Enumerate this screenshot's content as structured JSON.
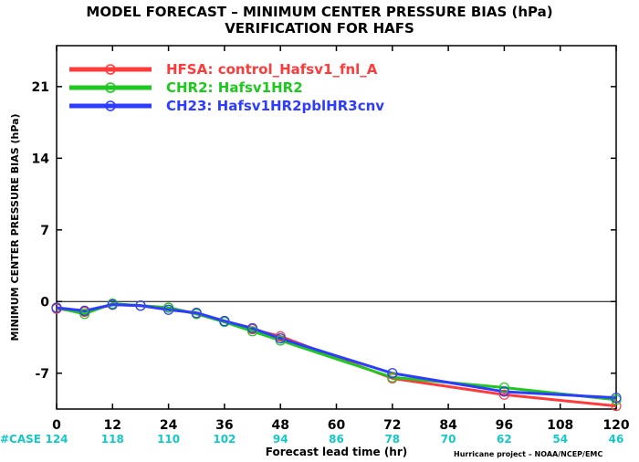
{
  "chart_data": {
    "type": "line",
    "title": "MODEL FORECAST – MINIMUM CENTER PRESSURE BIAS (hPa)",
    "subtitle": "VERIFICATION FOR HAFS",
    "xlabel": "Forecast lead time (hr)",
    "ylabel": "MINIMUM CENTER PRESSURE BIAS (hPa)",
    "xlim": [
      0,
      120
    ],
    "ylim": [
      -10.5,
      25
    ],
    "xticks": [
      0,
      12,
      24,
      36,
      48,
      60,
      72,
      84,
      96,
      108,
      120
    ],
    "yticks": [
      -7,
      0,
      7,
      14,
      21
    ],
    "zero_line": 0,
    "case_label": "#CASE",
    "cases": [
      124,
      118,
      110,
      102,
      94,
      86,
      78,
      70,
      62,
      54,
      46
    ],
    "footer": "Hurricane project – NOAA/NCEP/EMC",
    "legend_position": "top-left",
    "grid": false,
    "series": [
      {
        "name": "HFSA: control_Hafsv1_fnl_A",
        "color": "#ff3a3a",
        "x": [
          0,
          6,
          12,
          18,
          24,
          30,
          36,
          42,
          48,
          72,
          96,
          120
        ],
        "y": [
          -0.7,
          -1.0,
          -0.3,
          -0.4,
          -0.6,
          -1.2,
          -1.9,
          -2.7,
          -3.4,
          -7.5,
          -9.1,
          -10.2
        ]
      },
      {
        "name": "CHR2: Hafsv1HR2",
        "color": "#1ec81e",
        "x": [
          0,
          6,
          12,
          18,
          24,
          30,
          36,
          42,
          48,
          72,
          96,
          120
        ],
        "y": [
          -0.6,
          -1.2,
          -0.2,
          -0.4,
          -0.6,
          -1.2,
          -2.0,
          -2.9,
          -3.8,
          -7.4,
          -8.4,
          -9.6
        ]
      },
      {
        "name": "CH23: Hafsv1HR2pblHR3cnv",
        "color": "#2d3cff",
        "x": [
          0,
          6,
          12,
          18,
          24,
          30,
          36,
          42,
          48,
          72,
          96,
          120
        ],
        "y": [
          -0.6,
          -0.9,
          -0.3,
          -0.4,
          -0.8,
          -1.1,
          -1.9,
          -2.6,
          -3.6,
          -7.0,
          -8.8,
          -9.4
        ]
      }
    ]
  }
}
